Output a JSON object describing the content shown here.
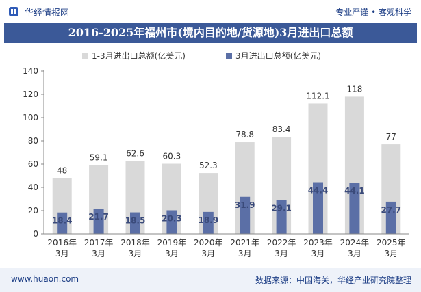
{
  "header": {
    "brand": "华经情报网",
    "slogan": "专业严谨 • 客观科学"
  },
  "chart_data": {
    "type": "bar",
    "title": "2016-2025年福州市(境内目的地/货源地)3月进出口总额",
    "categories": [
      "2016年\n3月",
      "2017年\n3月",
      "2018年\n3月",
      "2019年\n3月",
      "2020年\n3月",
      "2021年\n3月",
      "2022年\n3月",
      "2023年\n3月",
      "2024年\n3月",
      "2025年\n3月"
    ],
    "series": [
      {
        "name": "1-3月进出口总额(亿美元)",
        "values": [
          48,
          59.1,
          62.6,
          60.3,
          52.3,
          78.8,
          83.4,
          112.1,
          118,
          77
        ],
        "color": "#d9d9d9"
      },
      {
        "name": "3月进出口总额(亿美元)",
        "values": [
          18.4,
          21.7,
          18.5,
          20.3,
          18.9,
          31.9,
          29.1,
          44.4,
          44.1,
          27.7
        ],
        "color": "#5b6fa6"
      }
    ],
    "ylim": [
      0,
      140
    ],
    "yticks": [
      0,
      20,
      40,
      60,
      80,
      100,
      120,
      140
    ],
    "xlabel": "",
    "ylabel": "",
    "legend": "top-left",
    "grid": false
  },
  "footer": {
    "url": "www.huaon.com",
    "source": "数据来源：中国海关，华经产业研究院整理"
  }
}
